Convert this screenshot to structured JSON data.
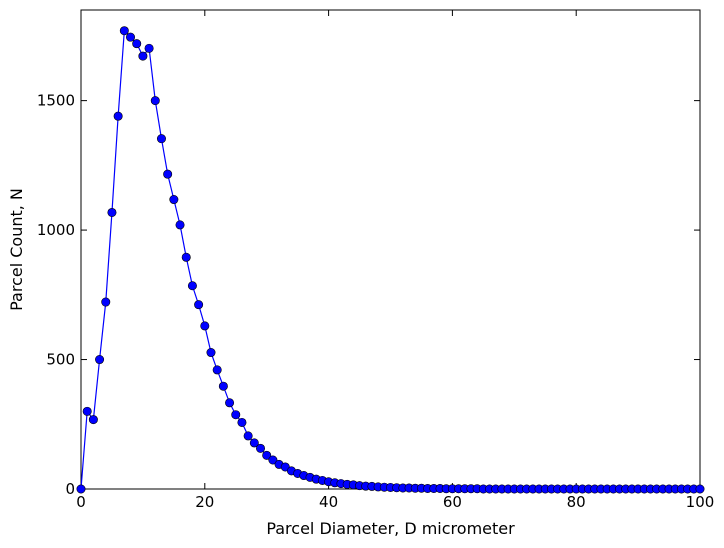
{
  "chart_data": {
    "type": "line",
    "title": "",
    "xlabel": "Parcel Diameter, D micrometer",
    "ylabel": "Parcel Count, N",
    "xlim": [
      0,
      100
    ],
    "ylim": [
      0,
      1850
    ],
    "xticks": [
      0,
      20,
      40,
      60,
      80,
      100
    ],
    "yticks": [
      0,
      500,
      1000,
      1500
    ],
    "grid": false,
    "legend": "none",
    "color": "#0000ff",
    "marker": "circle",
    "series": [
      {
        "x": [
          0,
          1,
          2,
          3,
          4,
          5,
          6,
          7,
          8,
          9,
          10,
          11,
          12,
          13,
          14,
          15,
          16,
          17,
          18,
          19,
          20,
          21,
          22,
          23,
          24,
          25,
          26,
          27,
          28,
          29,
          30,
          31,
          32,
          33,
          34,
          35,
          36,
          37,
          38,
          39,
          40,
          41,
          42,
          43,
          44,
          45,
          46,
          47,
          48,
          49,
          50,
          51,
          52,
          53,
          54,
          55,
          56,
          57,
          58,
          59,
          60,
          61,
          62,
          63,
          64,
          65,
          66,
          67,
          68,
          69,
          70,
          71,
          72,
          73,
          74,
          75,
          76,
          77,
          78,
          79,
          80,
          81,
          82,
          83,
          84,
          85,
          86,
          87,
          88,
          89,
          90,
          91,
          92,
          93,
          94,
          95,
          96,
          97,
          98,
          99,
          100
        ],
        "values": [
          0,
          300,
          268,
          500,
          722,
          1068,
          1440,
          1770,
          1745,
          1720,
          1672,
          1702,
          1500,
          1353,
          1216,
          1118,
          1020,
          895,
          785,
          712,
          630,
          527,
          460,
          397,
          333,
          287,
          257,
          205,
          178,
          157,
          130,
          112,
          95,
          85,
          70,
          60,
          52,
          45,
          38,
          33,
          28,
          24,
          21,
          18,
          16,
          13,
          11,
          10,
          8,
          7,
          6,
          5,
          4,
          4,
          3,
          3,
          2,
          2,
          2,
          1,
          1,
          1,
          1,
          1,
          1,
          0,
          0,
          0,
          0,
          0,
          0,
          0,
          0,
          0,
          0,
          0,
          0,
          0,
          0,
          0,
          0,
          0,
          0,
          0,
          0,
          0,
          0,
          0,
          0,
          0,
          0,
          0,
          0,
          0,
          0,
          0,
          0,
          0,
          0,
          0,
          0
        ]
      }
    ]
  }
}
